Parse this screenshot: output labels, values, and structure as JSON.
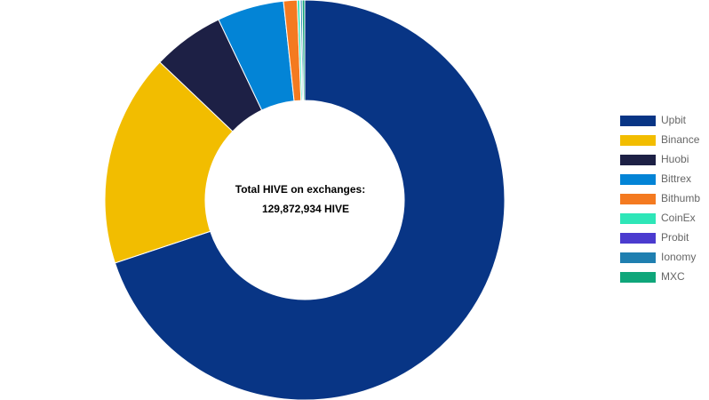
{
  "chart_data": {
    "type": "doughnut",
    "center_title": "Total HIVE on exchanges:",
    "center_value": "129,872,934 HIVE",
    "categories": [
      "Upbit",
      "Binance",
      "Huobi",
      "Bittrex",
      "Bithumb",
      "CoinEx",
      "Probit",
      "Ionomy",
      "MXC"
    ],
    "values": [
      69.9,
      17.2,
      5.8,
      5.4,
      1.1,
      0.2,
      0.05,
      0.15,
      0.2
    ],
    "colors": [
      "#083585",
      "#f2bd00",
      "#1d2045",
      "#0384d6",
      "#f47a20",
      "#2ee6b8",
      "#4b3bcf",
      "#1f7fb0",
      "#0fa67a"
    ],
    "legend": "right"
  }
}
